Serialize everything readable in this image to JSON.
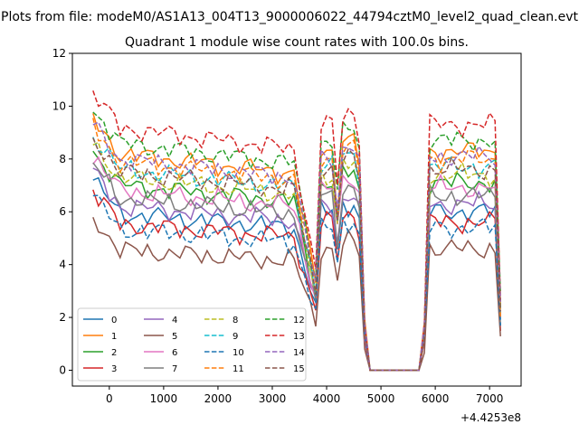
{
  "chart_data": {
    "type": "line",
    "suptitle": "Plots from file: modeM0/AS1A13_004T13_9000006022_44794cztM0_level2_quad_clean.evt",
    "title": "Quadrant 1 module wise count rates with 100.0s bins.",
    "xlabel": "",
    "ylabel": "",
    "x_offset_label": "+4.4253e8",
    "xlim": [
      -680,
      7580
    ],
    "ylim": [
      -0.6,
      12
    ],
    "x_ticks": [
      0,
      1000,
      2000,
      3000,
      4000,
      5000,
      6000,
      7000
    ],
    "y_ticks": [
      0,
      2,
      4,
      6,
      8,
      10,
      12
    ],
    "legend_position": "lower-left",
    "time_bins": [
      -300,
      -200,
      -100,
      0,
      100,
      200,
      300,
      400,
      500,
      600,
      700,
      800,
      900,
      1000,
      1100,
      1200,
      1300,
      1400,
      1500,
      1600,
      1700,
      1800,
      1900,
      2000,
      2100,
      2200,
      2300,
      2400,
      2500,
      2600,
      2700,
      2800,
      2900,
      3000,
      3100,
      3200,
      3300,
      3400,
      3500,
      3600,
      3700,
      3800,
      3900,
      4000,
      4100,
      4200,
      4300,
      4400,
      4500,
      4600,
      4700,
      4800,
      4900,
      5000,
      5100,
      5200,
      5300,
      5400,
      5500,
      5600,
      5700,
      5800,
      5900,
      6000,
      6100,
      6200,
      6300,
      6400,
      6500,
      6600,
      6700,
      6800,
      6900,
      7000,
      7100,
      7200
    ],
    "series": [
      {
        "name": "0",
        "color": "#1f77b4",
        "dash": "solid",
        "base": 6.0
      },
      {
        "name": "1",
        "color": "#ff7f0e",
        "dash": "solid",
        "base": 8.3
      },
      {
        "name": "2",
        "color": "#2ca02c",
        "dash": "solid",
        "base": 7.1
      },
      {
        "name": "3",
        "color": "#d62728",
        "dash": "solid",
        "base": 5.6
      },
      {
        "name": "4",
        "color": "#9467bd",
        "dash": "solid",
        "base": 6.3
      },
      {
        "name": "5",
        "color": "#8c564b",
        "dash": "solid",
        "base": 4.6
      },
      {
        "name": "6",
        "color": "#e377c2",
        "dash": "solid",
        "base": 6.9
      },
      {
        "name": "7",
        "color": "#7f7f7f",
        "dash": "solid",
        "base": 6.6
      },
      {
        "name": "8",
        "color": "#bcbd22",
        "dash": "dashed",
        "base": 7.4
      },
      {
        "name": "9",
        "color": "#17becf",
        "dash": "dashed",
        "base": 7.7
      },
      {
        "name": "10",
        "color": "#1f77b4",
        "dash": "dashed",
        "base": 5.4
      },
      {
        "name": "11",
        "color": "#ff7f0e",
        "dash": "dashed",
        "base": 8.0
      },
      {
        "name": "12",
        "color": "#2ca02c",
        "dash": "dashed",
        "base": 8.7
      },
      {
        "name": "13",
        "color": "#d62728",
        "dash": "dashed",
        "base": 9.3
      },
      {
        "name": "14",
        "color": "#9467bd",
        "dash": "dashed",
        "base": 8.1
      },
      {
        "name": "15",
        "color": "#8c564b",
        "dash": "dashed",
        "base": 7.6
      }
    ]
  }
}
